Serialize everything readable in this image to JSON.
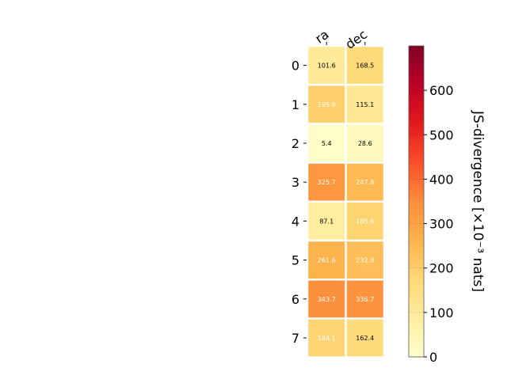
{
  "chart_data": {
    "type": "heatmap",
    "title": "",
    "columns": [
      "ra",
      "dec"
    ],
    "rows": [
      "0",
      "1",
      "2",
      "3",
      "4",
      "5",
      "6",
      "7"
    ],
    "values": [
      [
        101.6,
        168.5
      ],
      [
        195.9,
        115.1
      ],
      [
        5.4,
        28.6
      ],
      [
        325.7,
        247.8
      ],
      [
        87.1,
        185.6
      ],
      [
        261.6,
        232.3
      ],
      [
        343.7,
        336.7
      ],
      [
        184.1,
        162.4
      ]
    ],
    "colorbar": {
      "label": "JS-divergence [×10⁻³ nats]",
      "range": [
        0,
        700
      ],
      "ticks": [
        "0",
        "100",
        "200",
        "300",
        "400",
        "500",
        "600"
      ],
      "colormap": "YlOrRd"
    },
    "grid": false
  }
}
